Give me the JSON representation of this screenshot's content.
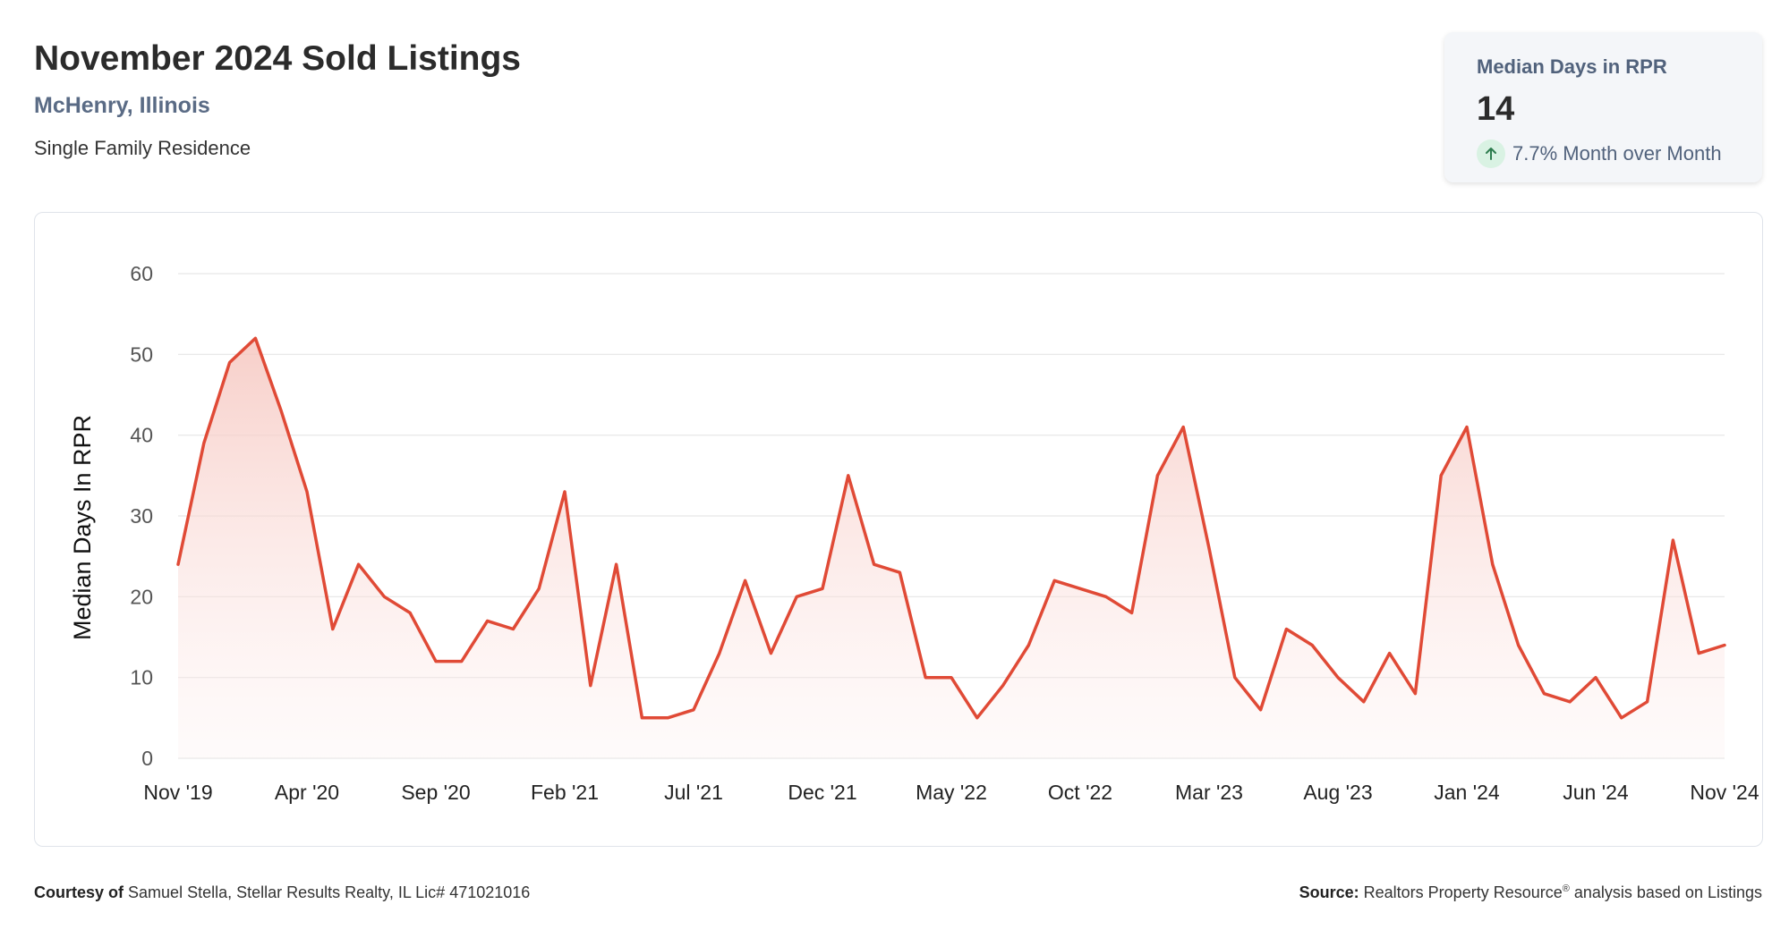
{
  "header": {
    "title": "November 2024 Sold Listings",
    "location": "McHenry, Illinois",
    "property_type": "Single Family Residence"
  },
  "stat": {
    "label": "Median Days in RPR",
    "value": "14",
    "change": "7.7% Month over Month",
    "icon": "arrow-up-icon"
  },
  "footer": {
    "courtesy_label": "Courtesy of",
    "courtesy_text": "Samuel Stella, Stellar Results Realty, IL Lic# 471021016",
    "source_label": "Source:",
    "source_text_a": "Realtors Property Resource",
    "source_reg": "®",
    "source_text_b": "analysis based on Listings"
  },
  "colors": {
    "line": "#e04a36",
    "fill_top": "#f6c6bf",
    "grid": "#e6e6e6"
  },
  "chart_data": {
    "type": "area",
    "ylabel": "Median Days In RPR",
    "ylim": [
      0,
      60
    ],
    "yticks": [
      0,
      10,
      20,
      30,
      40,
      50,
      60
    ],
    "xtick_labels": [
      "Nov '19",
      "Apr '20",
      "Sep '20",
      "Feb '21",
      "Jul '21",
      "Dec '21",
      "May '22",
      "Oct '22",
      "Mar '23",
      "Aug '23",
      "Jan '24",
      "Jun '24",
      "Nov '24"
    ],
    "grid": true,
    "series": [
      {
        "values": [
          24,
          39,
          49,
          52,
          43,
          33,
          16,
          24,
          20,
          18,
          12,
          12,
          17,
          16,
          21,
          33,
          9,
          24,
          5,
          5,
          6,
          13,
          22,
          13,
          20,
          21,
          35,
          24,
          23,
          10,
          10,
          5,
          9,
          14,
          22,
          21,
          20,
          18,
          35,
          41,
          26,
          10,
          6,
          16,
          14,
          10,
          7,
          13,
          8,
          35,
          41,
          24,
          14,
          8,
          7,
          10,
          5,
          7,
          27,
          13,
          14
        ]
      }
    ]
  }
}
